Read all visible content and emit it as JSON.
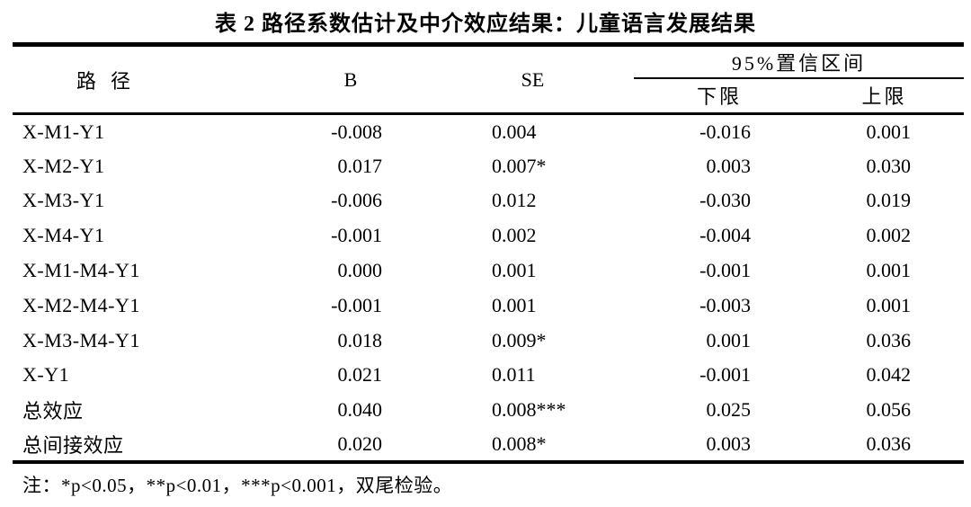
{
  "table": {
    "title": "表 2 路径系数估计及中介效应结果：儿童语言发展结果",
    "columns": {
      "path": "路径",
      "b": "B",
      "se": "SE",
      "ci": "95%置信区间",
      "lower": "下限",
      "upper": "上限"
    },
    "rows": [
      {
        "path": "X-M1-Y1",
        "b": "-0.008",
        "se": "0.004",
        "lower": "-0.016",
        "upper": "0.001"
      },
      {
        "path": "X-M2-Y1",
        "b": "0.017",
        "se": "0.007*",
        "lower": "0.003",
        "upper": "0.030"
      },
      {
        "path": "X-M3-Y1",
        "b": "-0.006",
        "se": "0.012",
        "lower": "-0.030",
        "upper": "0.019"
      },
      {
        "path": "X-M4-Y1",
        "b": "-0.001",
        "se": "0.002",
        "lower": "-0.004",
        "upper": "0.002"
      },
      {
        "path": "X-M1-M4-Y1",
        "b": "0.000",
        "se": "0.001",
        "lower": "-0.001",
        "upper": "0.001"
      },
      {
        "path": "X-M2-M4-Y1",
        "b": "-0.001",
        "se": "0.001",
        "lower": "-0.003",
        "upper": "0.001"
      },
      {
        "path": "X-M3-M4-Y1",
        "b": "0.018",
        "se": "0.009*",
        "lower": "0.001",
        "upper": "0.036"
      },
      {
        "path": "X-Y1",
        "b": "0.021",
        "se": "0.011",
        "lower": "-0.001",
        "upper": "0.042"
      },
      {
        "path": "总效应",
        "b": "0.040",
        "se": "0.008***",
        "lower": "0.025",
        "upper": "0.056"
      },
      {
        "path": "总间接效应",
        "b": "0.020",
        "se": "0.008*",
        "lower": "0.003",
        "upper": "0.036"
      }
    ],
    "note": "注：*p<0.05，**p<0.01，***p<0.001，双尾检验。"
  },
  "colors": {
    "text": "#000000",
    "background": "#ffffff",
    "border": "#000000"
  }
}
